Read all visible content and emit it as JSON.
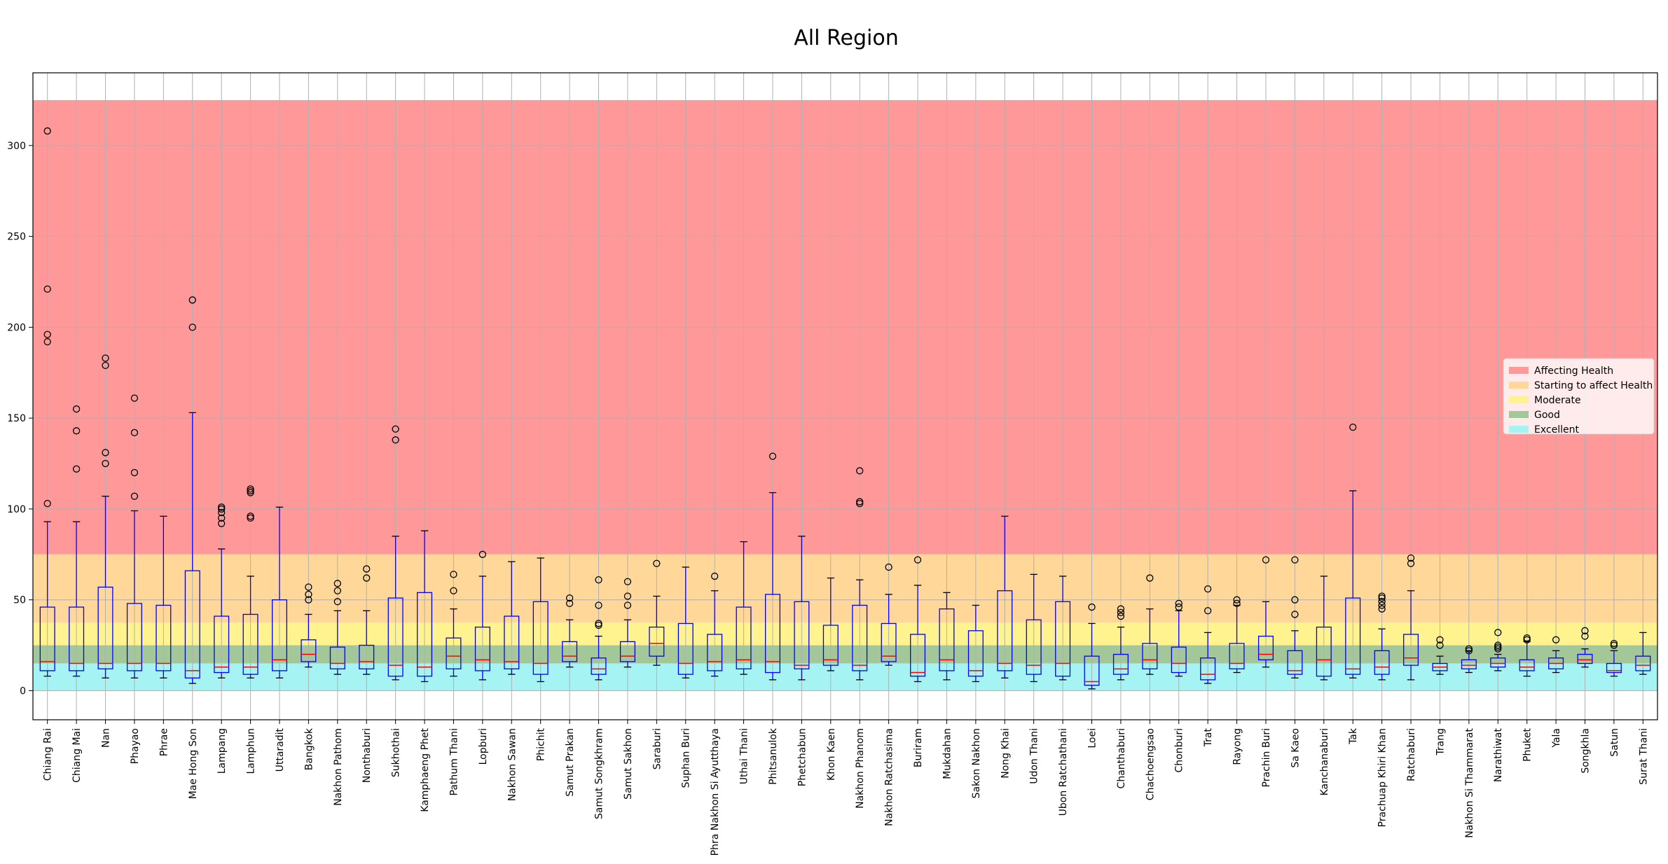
{
  "chart_data": {
    "type": "boxplot",
    "title": "All Region",
    "xlabel": "",
    "ylabel": "",
    "ylim": [
      -16,
      340
    ],
    "y_ticks": [
      0,
      50,
      100,
      150,
      200,
      250,
      300
    ],
    "grid": true,
    "legend_position": "center-right",
    "bands": [
      {
        "name": "Affecting Health",
        "from": 75,
        "to": 325,
        "color": "#ff9999"
      },
      {
        "name": "Starting to affect Health",
        "from": 37.5,
        "to": 75,
        "color": "#ffd799"
      },
      {
        "name": "Moderate",
        "from": 25,
        "to": 37.5,
        "color": "#fff38f"
      },
      {
        "name": "Good",
        "from": 15,
        "to": 25,
        "color": "#a4c79a"
      },
      {
        "name": "Excellent",
        "from": 0,
        "to": 15,
        "color": "#a6f3f3"
      }
    ],
    "box_color": "#0000ff",
    "median_color": "#ff0000",
    "boxes": [
      {
        "name": "Chiang Rai",
        "whisker_low": 8,
        "q1": 11,
        "median": 16,
        "q3": 46,
        "whisker_high": 93,
        "outliers": [
          103,
          192,
          196,
          221,
          308
        ]
      },
      {
        "name": "Chiang Mai",
        "whisker_low": 8,
        "q1": 11,
        "median": 15,
        "q3": 46,
        "whisker_high": 93,
        "outliers": [
          122,
          143,
          155
        ]
      },
      {
        "name": "Nan",
        "whisker_low": 7,
        "q1": 12,
        "median": 15,
        "q3": 57,
        "whisker_high": 107,
        "outliers": [
          125,
          131,
          179,
          183
        ]
      },
      {
        "name": "Phayao",
        "whisker_low": 7,
        "q1": 11,
        "median": 15,
        "q3": 48,
        "whisker_high": 99,
        "outliers": [
          107,
          120,
          142,
          161
        ]
      },
      {
        "name": "Phrae",
        "whisker_low": 7,
        "q1": 11,
        "median": 15,
        "q3": 47,
        "whisker_high": 96,
        "outliers": []
      },
      {
        "name": "Mae Hong Son",
        "whisker_low": 4,
        "q1": 7,
        "median": 11,
        "q3": 66,
        "whisker_high": 153,
        "outliers": [
          200,
          215
        ]
      },
      {
        "name": "Lampang",
        "whisker_low": 7,
        "q1": 10,
        "median": 13,
        "q3": 41,
        "whisker_high": 78,
        "outliers": [
          92,
          95,
          98,
          100,
          101
        ]
      },
      {
        "name": "Lamphun",
        "whisker_low": 7,
        "q1": 9,
        "median": 13,
        "q3": 42,
        "whisker_high": 63,
        "outliers": [
          95,
          96,
          109,
          110,
          111
        ]
      },
      {
        "name": "Uttaradit",
        "whisker_low": 7,
        "q1": 11,
        "median": 17,
        "q3": 50,
        "whisker_high": 101,
        "outliers": []
      },
      {
        "name": "Bangkok",
        "whisker_low": 13,
        "q1": 16,
        "median": 20,
        "q3": 28,
        "whisker_high": 42,
        "outliers": [
          50,
          53,
          57
        ]
      },
      {
        "name": "Nakhon Pathom",
        "whisker_low": 9,
        "q1": 12,
        "median": 15,
        "q3": 24,
        "whisker_high": 44,
        "outliers": [
          49,
          55,
          59
        ]
      },
      {
        "name": "Nonthaburi",
        "whisker_low": 9,
        "q1": 12,
        "median": 16,
        "q3": 25,
        "whisker_high": 44,
        "outliers": [
          62,
          67
        ]
      },
      {
        "name": "Sukhothai",
        "whisker_low": 6,
        "q1": 8,
        "median": 14,
        "q3": 51,
        "whisker_high": 85,
        "outliers": [
          138,
          144
        ]
      },
      {
        "name": "Kamphaeng Phet",
        "whisker_low": 5,
        "q1": 8,
        "median": 13,
        "q3": 54,
        "whisker_high": 88,
        "outliers": []
      },
      {
        "name": "Pathum Thani",
        "whisker_low": 8,
        "q1": 12,
        "median": 19,
        "q3": 29,
        "whisker_high": 45,
        "outliers": [
          55,
          64
        ]
      },
      {
        "name": "Lopburi",
        "whisker_low": 6,
        "q1": 11,
        "median": 17,
        "q3": 35,
        "whisker_high": 63,
        "outliers": [
          75
        ]
      },
      {
        "name": "Nakhon Sawan",
        "whisker_low": 9,
        "q1": 12,
        "median": 16,
        "q3": 41,
        "whisker_high": 71,
        "outliers": []
      },
      {
        "name": "Phichit",
        "whisker_low": 5,
        "q1": 9,
        "median": 15,
        "q3": 49,
        "whisker_high": 73,
        "outliers": []
      },
      {
        "name": "Samut Prakan",
        "whisker_low": 13,
        "q1": 16,
        "median": 19,
        "q3": 27,
        "whisker_high": 39,
        "outliers": [
          48,
          51
        ]
      },
      {
        "name": "Samut Songkhram",
        "whisker_low": 6,
        "q1": 9,
        "median": 12,
        "q3": 18,
        "whisker_high": 30,
        "outliers": [
          36,
          37,
          47,
          61
        ]
      },
      {
        "name": "Samut Sakhon",
        "whisker_low": 13,
        "q1": 16,
        "median": 19,
        "q3": 27,
        "whisker_high": 39,
        "outliers": [
          47,
          52,
          60
        ]
      },
      {
        "name": "Saraburi",
        "whisker_low": 14,
        "q1": 19,
        "median": 26,
        "q3": 35,
        "whisker_high": 52,
        "outliers": [
          70
        ]
      },
      {
        "name": "Suphan Buri",
        "whisker_low": 7,
        "q1": 9,
        "median": 15,
        "q3": 37,
        "whisker_high": 68,
        "outliers": []
      },
      {
        "name": "Phra Nakhon Si Ayutthaya",
        "whisker_low": 8,
        "q1": 11,
        "median": 16,
        "q3": 31,
        "whisker_high": 55,
        "outliers": [
          63
        ]
      },
      {
        "name": "Uthai Thani",
        "whisker_low": 9,
        "q1": 12,
        "median": 17,
        "q3": 46,
        "whisker_high": 82,
        "outliers": []
      },
      {
        "name": "Phitsanulok",
        "whisker_low": 6,
        "q1": 10,
        "median": 16,
        "q3": 53,
        "whisker_high": 109,
        "outliers": [
          129
        ]
      },
      {
        "name": "Phetchabun",
        "whisker_low": 6,
        "q1": 12,
        "median": 14,
        "q3": 49,
        "whisker_high": 85,
        "outliers": []
      },
      {
        "name": "Khon Kaen",
        "whisker_low": 11,
        "q1": 14,
        "median": 17,
        "q3": 36,
        "whisker_high": 62,
        "outliers": []
      },
      {
        "name": "Nakhon Phanom",
        "whisker_low": 6,
        "q1": 11,
        "median": 14,
        "q3": 47,
        "whisker_high": 61,
        "outliers": [
          103,
          104,
          121
        ]
      },
      {
        "name": "Nakhon Ratchasima",
        "whisker_low": 14,
        "q1": 16,
        "median": 19,
        "q3": 37,
        "whisker_high": 53,
        "outliers": [
          68
        ]
      },
      {
        "name": "Buriram",
        "whisker_low": 5,
        "q1": 8,
        "median": 10,
        "q3": 31,
        "whisker_high": 58,
        "outliers": [
          72
        ]
      },
      {
        "name": "Mukdahan",
        "whisker_low": 6,
        "q1": 11,
        "median": 17,
        "q3": 45,
        "whisker_high": 54,
        "outliers": []
      },
      {
        "name": "Sakon Nakhon",
        "whisker_low": 5,
        "q1": 8,
        "median": 11,
        "q3": 33,
        "whisker_high": 47,
        "outliers": []
      },
      {
        "name": "Nong Khai",
        "whisker_low": 7,
        "q1": 11,
        "median": 15,
        "q3": 55,
        "whisker_high": 96,
        "outliers": []
      },
      {
        "name": "Udon Thani",
        "whisker_low": 5,
        "q1": 9,
        "median": 14,
        "q3": 39,
        "whisker_high": 64,
        "outliers": []
      },
      {
        "name": "Ubon Ratchathani",
        "whisker_low": 6,
        "q1": 8,
        "median": 15,
        "q3": 49,
        "whisker_high": 63,
        "outliers": []
      },
      {
        "name": "Loei",
        "whisker_low": 1,
        "q1": 3,
        "median": 5,
        "q3": 19,
        "whisker_high": 37,
        "outliers": [
          46
        ]
      },
      {
        "name": "Chanthaburi",
        "whisker_low": 6,
        "q1": 9,
        "median": 12,
        "q3": 20,
        "whisker_high": 35,
        "outliers": [
          41,
          43,
          45
        ]
      },
      {
        "name": "Chachoengsao",
        "whisker_low": 9,
        "q1": 12,
        "median": 17,
        "q3": 26,
        "whisker_high": 45,
        "outliers": [
          62
        ]
      },
      {
        "name": "Chonburi",
        "whisker_low": 8,
        "q1": 10,
        "median": 15,
        "q3": 24,
        "whisker_high": 44,
        "outliers": [
          46,
          48
        ]
      },
      {
        "name": "Trat",
        "whisker_low": 4,
        "q1": 6,
        "median": 9,
        "q3": 18,
        "whisker_high": 32,
        "outliers": [
          44,
          56
        ]
      },
      {
        "name": "Rayong",
        "whisker_low": 10,
        "q1": 12,
        "median": 15,
        "q3": 26,
        "whisker_high": 47,
        "outliers": [
          48,
          50
        ]
      },
      {
        "name": "Prachin Buri",
        "whisker_low": 13,
        "q1": 17,
        "median": 20,
        "q3": 30,
        "whisker_high": 49,
        "outliers": [
          72
        ]
      },
      {
        "name": "Sa Kaeo",
        "whisker_low": 7,
        "q1": 9,
        "median": 11,
        "q3": 22,
        "whisker_high": 33,
        "outliers": [
          42,
          50,
          72
        ]
      },
      {
        "name": "Kanchanaburi",
        "whisker_low": 6,
        "q1": 8,
        "median": 17,
        "q3": 35,
        "whisker_high": 63,
        "outliers": []
      },
      {
        "name": "Tak",
        "whisker_low": 7,
        "q1": 9,
        "median": 12,
        "q3": 51,
        "whisker_high": 110,
        "outliers": [
          145
        ]
      },
      {
        "name": "Prachuap Khiri Khan",
        "whisker_low": 6,
        "q1": 9,
        "median": 13,
        "q3": 22,
        "whisker_high": 34,
        "outliers": [
          45,
          47,
          49,
          51,
          52
        ]
      },
      {
        "name": "Ratchaburi",
        "whisker_low": 6,
        "q1": 14,
        "median": 18,
        "q3": 31,
        "whisker_high": 55,
        "outliers": [
          70,
          73
        ]
      },
      {
        "name": "Trang",
        "whisker_low": 9,
        "q1": 11,
        "median": 13,
        "q3": 15,
        "whisker_high": 19,
        "outliers": [
          25,
          28
        ]
      },
      {
        "name": "Nakhon Si Thammarat",
        "whisker_low": 10,
        "q1": 12,
        "median": 14,
        "q3": 17,
        "whisker_high": 22,
        "outliers": [
          22,
          23
        ]
      },
      {
        "name": "Narathiwat",
        "whisker_low": 11,
        "q1": 13,
        "median": 15,
        "q3": 18,
        "whisker_high": 20,
        "outliers": [
          23,
          24,
          25,
          32
        ]
      },
      {
        "name": "Phuket",
        "whisker_low": 8,
        "q1": 11,
        "median": 13,
        "q3": 17,
        "whisker_high": 27,
        "outliers": [
          28,
          29
        ]
      },
      {
        "name": "Yala",
        "whisker_low": 10,
        "q1": 12,
        "median": 15,
        "q3": 18,
        "whisker_high": 22,
        "outliers": [
          28
        ]
      },
      {
        "name": "Songkhla",
        "whisker_low": 13,
        "q1": 15,
        "median": 17,
        "q3": 20,
        "whisker_high": 23,
        "outliers": [
          30,
          33
        ]
      },
      {
        "name": "Satun",
        "whisker_low": 8,
        "q1": 10,
        "median": 11,
        "q3": 15,
        "whisker_high": 22,
        "outliers": [
          25,
          26
        ]
      },
      {
        "name": "Surat Thani",
        "whisker_low": 9,
        "q1": 11,
        "median": 14,
        "q3": 19,
        "whisker_high": 32,
        "outliers": []
      }
    ]
  }
}
